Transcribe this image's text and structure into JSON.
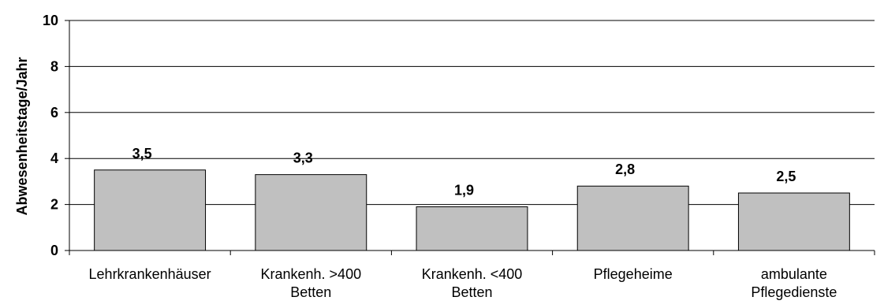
{
  "chart_data": {
    "type": "bar",
    "title": "",
    "xlabel": "",
    "ylabel": "Abwesenheitstage/Jahr",
    "ylim": [
      0,
      10
    ],
    "yticks": [
      0,
      2,
      4,
      6,
      8,
      10
    ],
    "yticks_labels": [
      "0",
      "2",
      "4",
      "6",
      "8",
      "10"
    ],
    "grid": true,
    "categories": [
      [
        "Lehrkrankenhäuser"
      ],
      [
        "Krankenh. >400",
        "Betten"
      ],
      [
        "Krankenh. <400",
        "Betten"
      ],
      [
        "Pflegeheime"
      ],
      [
        "ambulante",
        "Pflegedienste"
      ]
    ],
    "values": [
      3.5,
      3.3,
      1.9,
      2.8,
      2.5
    ],
    "data_labels": [
      "3,5",
      "3,3",
      "1,9",
      "2,8",
      "2,5"
    ],
    "bar_color": "#c0c0c0",
    "bar_edge_color": "#000000"
  }
}
